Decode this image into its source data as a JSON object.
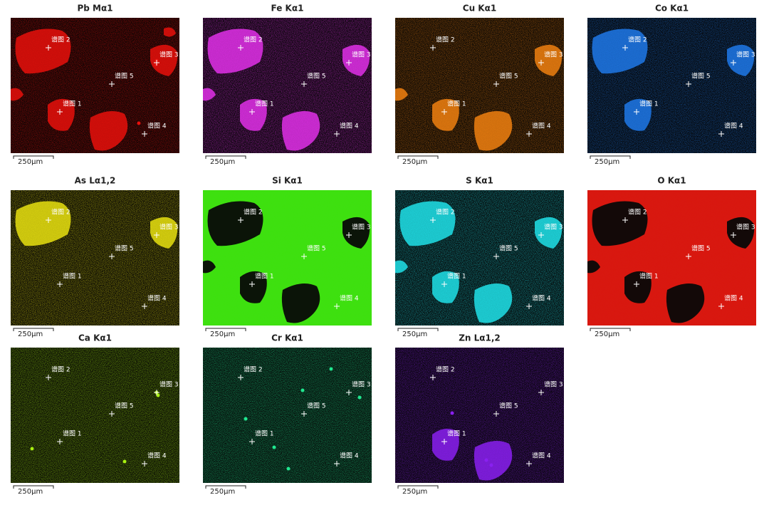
{
  "panels": [
    {
      "title": "Pb Mα1",
      "color": "#e8100c"
    },
    {
      "title": "Fe Kα1",
      "color": "#e030e8"
    },
    {
      "title": "Cu Kα1",
      "color": "#f08010"
    },
    {
      "title": "Co Kα1",
      "color": "#1e78e8"
    },
    {
      "title": "As Lα1,2",
      "color": "#e8e010"
    },
    {
      "title": "Si Kα1",
      "color": "#3ee010"
    },
    {
      "title": "S Kα1",
      "color": "#20e0e8"
    },
    {
      "title": "O Kα1",
      "color": "#d81810"
    },
    {
      "title": "Ca Kα1",
      "color": "#a8f010"
    },
    {
      "title": "Cr Kα1",
      "color": "#20e890"
    },
    {
      "title": "Zn Lα1,2",
      "color": "#8a20f0"
    }
  ],
  "spectra": [
    "谱图 1",
    "谱图 2",
    "谱图 3",
    "谱图 4",
    "谱图 5"
  ],
  "scale_bar": "250μm"
}
